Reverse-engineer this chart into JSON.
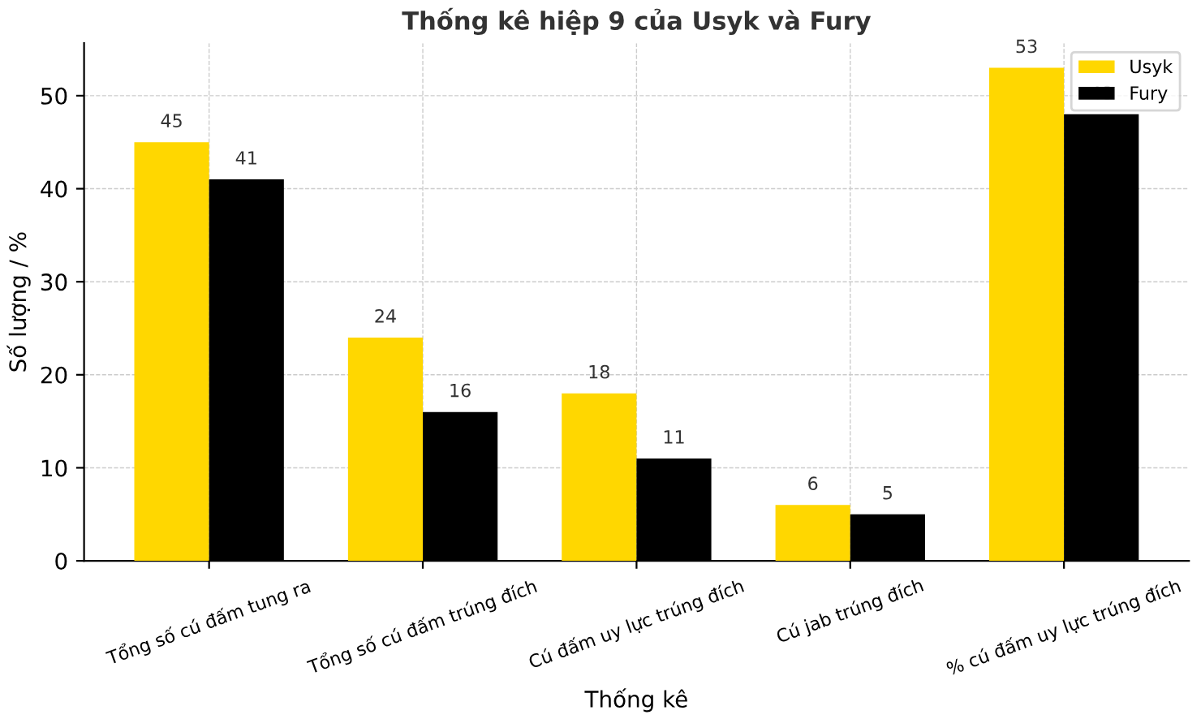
{
  "chart_data": {
    "type": "bar",
    "title": "Thống kê hiệp 9 của Usyk và Fury",
    "xlabel": "Thống kê",
    "ylabel": "Số lượng / %",
    "categories": [
      "Tổng số cú đấm tung ra",
      "Tổng số cú đấm trúng đích",
      "Cú đấm uy lực trúng đích",
      "Cú jab trúng đích",
      "% cú đấm uy lực trúng đích"
    ],
    "series": [
      {
        "name": "Usyk",
        "color": "#ffd700",
        "values": [
          45,
          24,
          18,
          6,
          53
        ]
      },
      {
        "name": "Fury",
        "color": "#000000",
        "values": [
          41,
          16,
          11,
          5,
          48
        ]
      }
    ],
    "ylim": [
      0,
      55.65
    ],
    "yticks": [
      0,
      10,
      20,
      30,
      40,
      50
    ],
    "grid": true,
    "legend": "top right",
    "data_labels": true
  }
}
